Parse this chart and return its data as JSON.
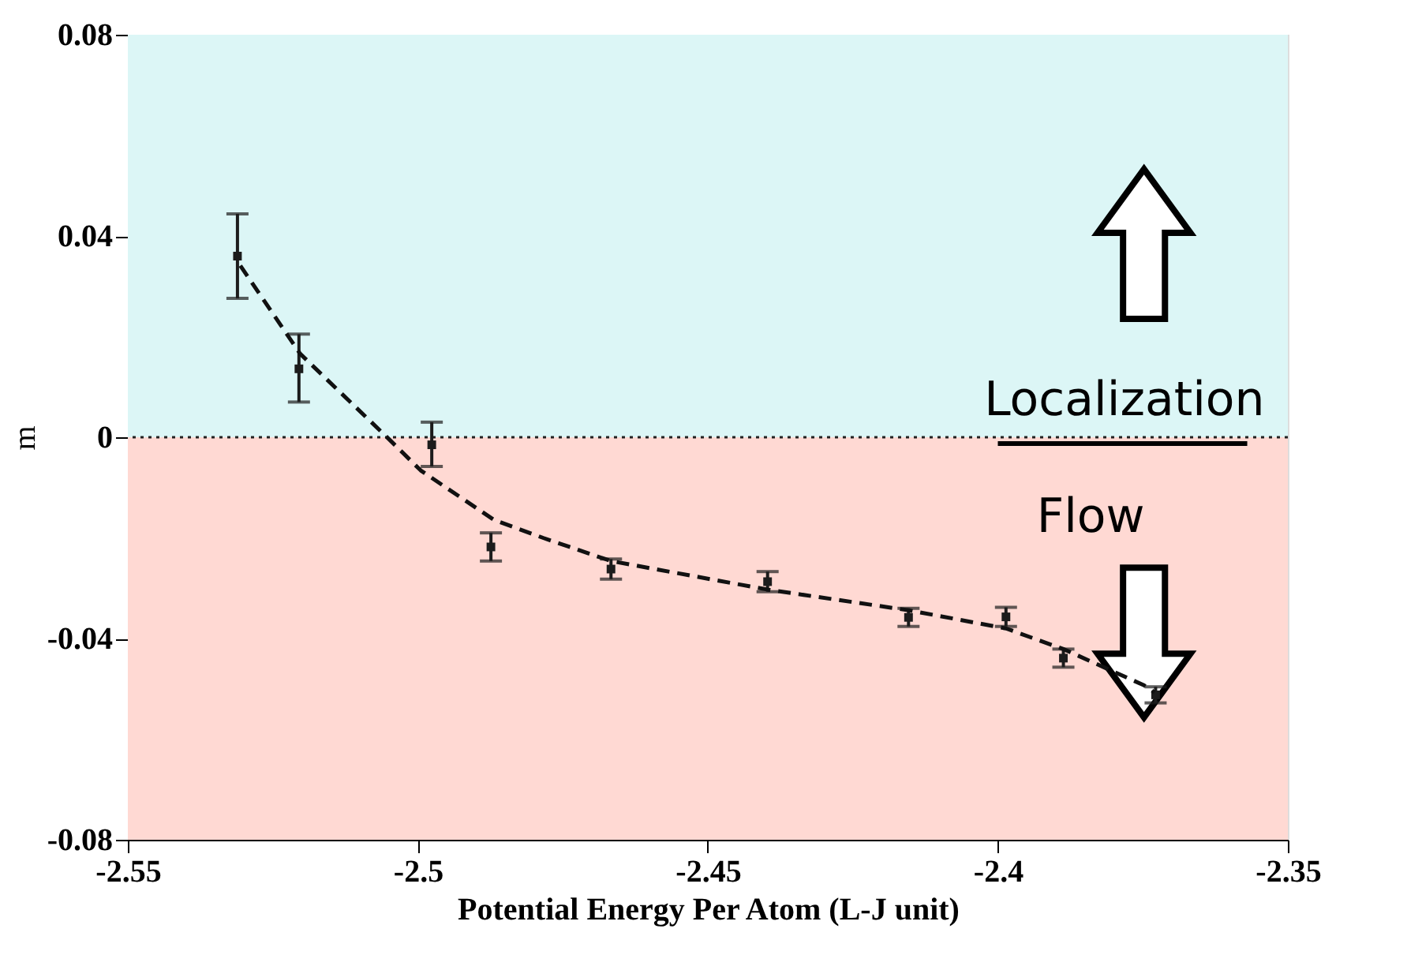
{
  "chart_data": {
    "type": "scatter",
    "xlabel": "Potential Energy Per Atom (L-J unit)",
    "ylabel": "m",
    "xlim": [
      -2.55,
      -2.35
    ],
    "xticks": [
      -2.55,
      -2.5,
      -2.45,
      -2.4,
      -2.35
    ],
    "ylim": [
      -0.08,
      0.08
    ],
    "yticks": [
      -0.08,
      -0.04,
      0,
      0.04,
      0.08
    ],
    "series": [
      {
        "color": "#1c1c1c",
        "marker": "square",
        "x": [
          -2.5311,
          -2.5205,
          -2.4976,
          -2.4874,
          -2.4667,
          -2.4397,
          -2.4154,
          -2.3986,
          -2.3887,
          -2.3728
        ],
        "values": [
          0.036,
          0.0136,
          -0.0015,
          -0.0218,
          -0.0262,
          -0.0287,
          -0.0358,
          -0.0357,
          -0.0439,
          -0.0512
        ],
        "errors": [
          [
            0.0276,
            0.0444
          ],
          [
            0.007,
            0.0205
          ],
          [
            -0.0058,
            0.003
          ],
          [
            -0.0246,
            -0.019
          ],
          [
            -0.0282,
            -0.0242
          ],
          [
            -0.0307,
            -0.0267
          ],
          [
            -0.0376,
            -0.034
          ],
          [
            -0.0376,
            -0.0338
          ],
          [
            -0.0457,
            -0.0421
          ],
          [
            -0.0528,
            -0.0496
          ]
        ]
      },
      {
        "type": "line",
        "color": "#111111",
        "line_style": "dashed",
        "marker": "none",
        "x": [
          -2.5306,
          -2.5203,
          -2.5054,
          -2.4995,
          -2.4869,
          -2.4784,
          -2.4667,
          -2.4396,
          -2.4153,
          -2.3986,
          -2.3887,
          -2.3748,
          -2.373
        ],
        "values": [
          0.0341,
          0.0166,
          0.0001,
          -0.0066,
          -0.0164,
          -0.02,
          -0.0246,
          -0.0303,
          -0.0344,
          -0.038,
          -0.0421,
          -0.0493,
          -0.0507
        ]
      }
    ],
    "bands": [
      {
        "axis": "y",
        "from": 0,
        "to": 0.08,
        "color": "#dcf6f6"
      },
      {
        "axis": "y",
        "from": -0.08,
        "to": 0,
        "color": "#ffd9d3"
      }
    ],
    "ref_lines": [
      {
        "axis": "y",
        "value": 0,
        "color": "#222222",
        "line_style": "dotted"
      }
    ],
    "annotations": [
      "Localization",
      "Flow"
    ]
  }
}
